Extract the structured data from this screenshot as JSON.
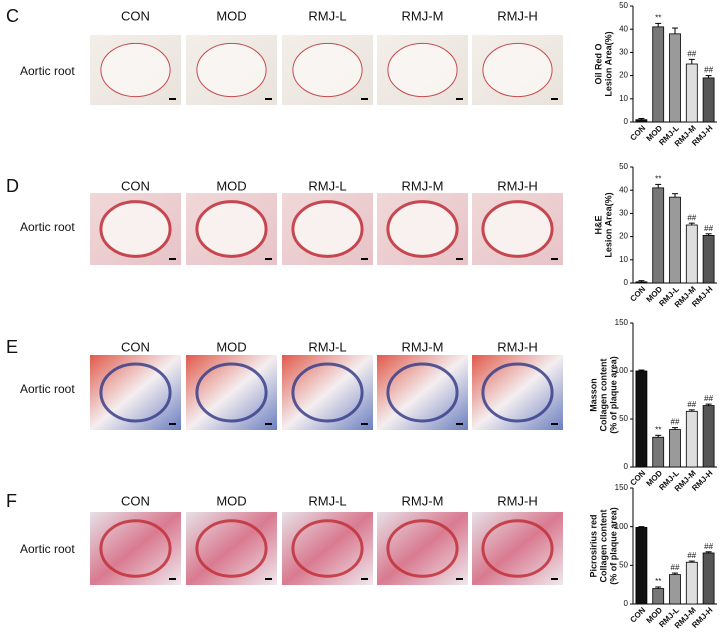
{
  "panels": [
    {
      "letter": "C",
      "row_label": "Aortic root",
      "columns": [
        "CON",
        "MOD",
        "RMJ-L",
        "RMJ-M",
        "RMJ-H"
      ]
    },
    {
      "letter": "D",
      "row_label": "Aortic root",
      "columns": [
        "CON",
        "MOD",
        "RMJ-L",
        "RMJ-M",
        "RMJ-H"
      ]
    },
    {
      "letter": "E",
      "row_label": "Aortic root",
      "columns": [
        "CON",
        "MOD",
        "RMJ-L",
        "RMJ-M",
        "RMJ-H"
      ]
    },
    {
      "letter": "F",
      "row_label": "Aortic root",
      "columns": [
        "CON",
        "MOD",
        "RMJ-L",
        "RMJ-M",
        "RMJ-H"
      ]
    }
  ],
  "chart_data": [
    {
      "type": "bar",
      "ylabel": [
        "Oil Red O",
        "Lesion Area(%)"
      ],
      "categories": [
        "CON",
        "MOD",
        "RMJ-L",
        "RMJ-M",
        "RMJ-H"
      ],
      "values": [
        1,
        41,
        38,
        25,
        19
      ],
      "errors": [
        0.5,
        1.5,
        2.5,
        2,
        1
      ],
      "annotations": [
        null,
        "**",
        null,
        "##",
        "##"
      ],
      "colors": [
        "#111111",
        "#777777",
        "#9a9a9a",
        "#dedede",
        "#555555"
      ],
      "ylim": [
        0,
        50
      ],
      "yticks": [
        0,
        10,
        20,
        30,
        40,
        50
      ]
    },
    {
      "type": "bar",
      "ylabel": [
        "H&E",
        "Lesion Area(%)"
      ],
      "categories": [
        "CON",
        "MOD",
        "RMJ-L",
        "RMJ-M",
        "RMJ-H"
      ],
      "values": [
        0.5,
        41,
        37,
        25,
        20.5
      ],
      "errors": [
        0.5,
        1.5,
        1.5,
        0.8,
        0.7
      ],
      "annotations": [
        null,
        "**",
        null,
        "##",
        "##"
      ],
      "colors": [
        "#111111",
        "#777777",
        "#9a9a9a",
        "#dedede",
        "#555555"
      ],
      "ylim": [
        0,
        50
      ],
      "yticks": [
        0,
        10,
        20,
        30,
        40,
        50
      ]
    },
    {
      "type": "bar",
      "ylabel": [
        "Masson",
        "Collagen content",
        "(% of plaque area)"
      ],
      "categories": [
        "CON",
        "MOD",
        "RMJ-L",
        "RMJ-M",
        "RMJ-H"
      ],
      "values": [
        100,
        31,
        39,
        58,
        64
      ],
      "errors": [
        1,
        2,
        2,
        1.5,
        1.5
      ],
      "annotations": [
        null,
        "**",
        "##",
        "##",
        "##"
      ],
      "colors": [
        "#111111",
        "#777777",
        "#9a9a9a",
        "#dedede",
        "#555555"
      ],
      "ylim": [
        0,
        150
      ],
      "yticks": [
        0,
        50,
        100,
        150
      ]
    },
    {
      "type": "bar",
      "ylabel": [
        "Picrosirius red",
        "Collagen content",
        "(% of plaque area)"
      ],
      "categories": [
        "CON",
        "MOD",
        "RMJ-L",
        "RMJ-M",
        "RMJ-H"
      ],
      "values": [
        99,
        20,
        38,
        54,
        66
      ],
      "errors": [
        1,
        2,
        2,
        1.5,
        1.5
      ],
      "annotations": [
        null,
        "**",
        "##",
        "##",
        "##"
      ],
      "colors": [
        "#111111",
        "#777777",
        "#9a9a9a",
        "#dedede",
        "#555555"
      ],
      "ylim": [
        0,
        150
      ],
      "yticks": [
        0,
        50,
        100,
        150
      ]
    }
  ]
}
